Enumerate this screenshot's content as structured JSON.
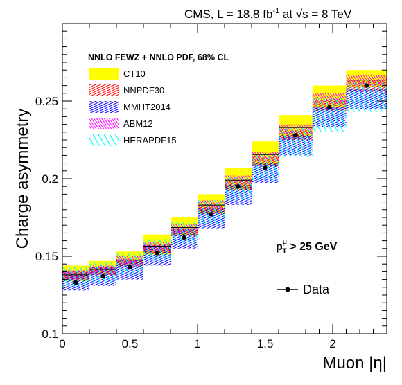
{
  "header": {
    "prefix": "CMS, L = 18.8 fb",
    "lumi_exp": "-1",
    "middle": " at ",
    "sqrt_s": "s = 8 TeV"
  },
  "legend": {
    "title": "NNLO FEWZ + NNLO PDF, 68% CL",
    "data_label": "Data"
  },
  "cut": {
    "p": "p",
    "sup": "μ",
    "sub": "T",
    "text": " > 25 GeV"
  },
  "colors": {
    "CT10": "#ffff00",
    "NNPDF30": "#ff0000",
    "MMHT2014": "#0000ff",
    "ABM12": "#ff00ff",
    "HERAPDF15": "#00ffff"
  },
  "chart_data": {
    "type": "bar",
    "description_none": "",
    "xlabel": "Muon |η|",
    "ylabel": "Charge asymmetry",
    "xlim": [
      0,
      2.4
    ],
    "ylim": [
      0.1,
      0.3
    ],
    "xticks": [
      "0",
      "0.5",
      "1",
      "1.5",
      "2"
    ],
    "xtick_values": [
      0,
      0.5,
      1,
      1.5,
      2
    ],
    "yticks": [
      "0.1",
      "0.15",
      "0.2",
      "0.25"
    ],
    "ytick_values": [
      0.1,
      0.15,
      0.2,
      0.25
    ],
    "bin_edges": [
      0,
      0.2,
      0.4,
      0.6,
      0.8,
      1.0,
      1.2,
      1.4,
      1.6,
      1.85,
      2.1,
      2.4
    ],
    "data": {
      "name": "Data",
      "x": [
        0.1,
        0.3,
        0.5,
        0.7,
        0.9,
        1.1,
        1.3,
        1.5,
        1.725,
        1.975,
        2.25
      ],
      "y": [
        0.133,
        0.137,
        0.143,
        0.152,
        0.162,
        0.177,
        0.195,
        0.207,
        0.228,
        0.246,
        0.26
      ]
    },
    "series": [
      {
        "name": "CT10",
        "low": [
          0.134,
          0.138,
          0.144,
          0.151,
          0.164,
          0.178,
          0.193,
          0.209,
          0.227,
          0.246,
          0.259
        ],
        "high": [
          0.144,
          0.147,
          0.153,
          0.164,
          0.175,
          0.19,
          0.207,
          0.224,
          0.241,
          0.26,
          0.27
        ]
      },
      {
        "name": "NNPDF30",
        "low": [
          0.135,
          0.138,
          0.143,
          0.152,
          0.163,
          0.177,
          0.193,
          0.208,
          0.225,
          0.244,
          0.256
        ],
        "high": [
          0.14,
          0.143,
          0.148,
          0.158,
          0.168,
          0.183,
          0.199,
          0.214,
          0.231,
          0.251,
          0.263
        ]
      },
      {
        "name": "MMHT2014",
        "low": [
          0.128,
          0.131,
          0.135,
          0.144,
          0.155,
          0.168,
          0.183,
          0.197,
          0.215,
          0.233,
          0.245
        ],
        "high": [
          0.14,
          0.143,
          0.148,
          0.157,
          0.168,
          0.181,
          0.196,
          0.21,
          0.228,
          0.246,
          0.258
        ]
      },
      {
        "name": "ABM12",
        "low": [
          0.135,
          0.138,
          0.144,
          0.153,
          0.165,
          0.18,
          0.196,
          0.211,
          0.229,
          0.248,
          0.26
        ],
        "high": [
          0.141,
          0.144,
          0.15,
          0.159,
          0.171,
          0.186,
          0.202,
          0.217,
          0.235,
          0.255,
          0.267
        ]
      },
      {
        "name": "HERAPDF15",
        "low": [
          0.13,
          0.133,
          0.138,
          0.147,
          0.158,
          0.171,
          0.186,
          0.199,
          0.214,
          0.23,
          0.243
        ],
        "high": [
          0.143,
          0.146,
          0.152,
          0.161,
          0.172,
          0.186,
          0.201,
          0.216,
          0.233,
          0.252,
          0.262
        ]
      }
    ]
  }
}
